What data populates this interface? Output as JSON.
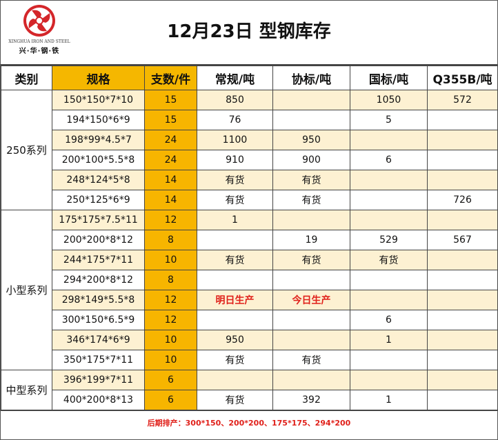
{
  "logo": {
    "en": "XINGHUA IRON AND STEEL",
    "cn": "兴·华·钢·铁"
  },
  "title": "12月23日  型钢库存",
  "headers": [
    "类别",
    "规格",
    "支数/件",
    "常规/吨",
    "协标/吨",
    "国标/吨",
    "Q355B/吨"
  ],
  "groups": [
    {
      "name": "250系列",
      "rows": [
        [
          "150*150*7*10",
          "15",
          "850",
          "",
          "1050",
          "572"
        ],
        [
          "194*150*6*9",
          "15",
          "76",
          "",
          "5",
          ""
        ],
        [
          "198*99*4.5*7",
          "24",
          "1100",
          "950",
          "",
          ""
        ],
        [
          "200*100*5.5*8",
          "24",
          "910",
          "900",
          "6",
          ""
        ],
        [
          "248*124*5*8",
          "14",
          "有货",
          "有货",
          "",
          ""
        ],
        [
          "250*125*6*9",
          "14",
          "有货",
          "有货",
          "",
          "726"
        ]
      ]
    },
    {
      "name": "小型系列",
      "rows": [
        [
          "175*175*7.5*11",
          "12",
          "1",
          "",
          "",
          ""
        ],
        [
          "200*200*8*12",
          "8",
          "",
          "19",
          "529",
          "567"
        ],
        [
          "244*175*7*11",
          "10",
          "有货",
          "有货",
          "有货",
          ""
        ],
        [
          "294*200*8*12",
          "8",
          "",
          "",
          "",
          ""
        ],
        [
          "298*149*5.5*8",
          "12",
          "明日生产",
          "今日生产",
          "",
          ""
        ],
        [
          "300*150*6.5*9",
          "12",
          "",
          "",
          "6",
          ""
        ],
        [
          "346*174*6*9",
          "10",
          "950",
          "",
          "1",
          ""
        ],
        [
          "350*175*7*11",
          "10",
          "有货",
          "有货",
          "",
          ""
        ]
      ]
    },
    {
      "name": "中型系列",
      "rows": [
        [
          "396*199*7*11",
          "6",
          "",
          "",
          "",
          ""
        ],
        [
          "400*200*8*13",
          "6",
          "有货",
          "392",
          "1",
          ""
        ]
      ]
    }
  ],
  "red_values": [
    "明日生产",
    "今日生产"
  ],
  "colors": {
    "gold": "#f5b700",
    "light": "#fdf1d2",
    "red": "#e0201a"
  },
  "note": "后期排产：300*150、200*200、175*175、294*200"
}
